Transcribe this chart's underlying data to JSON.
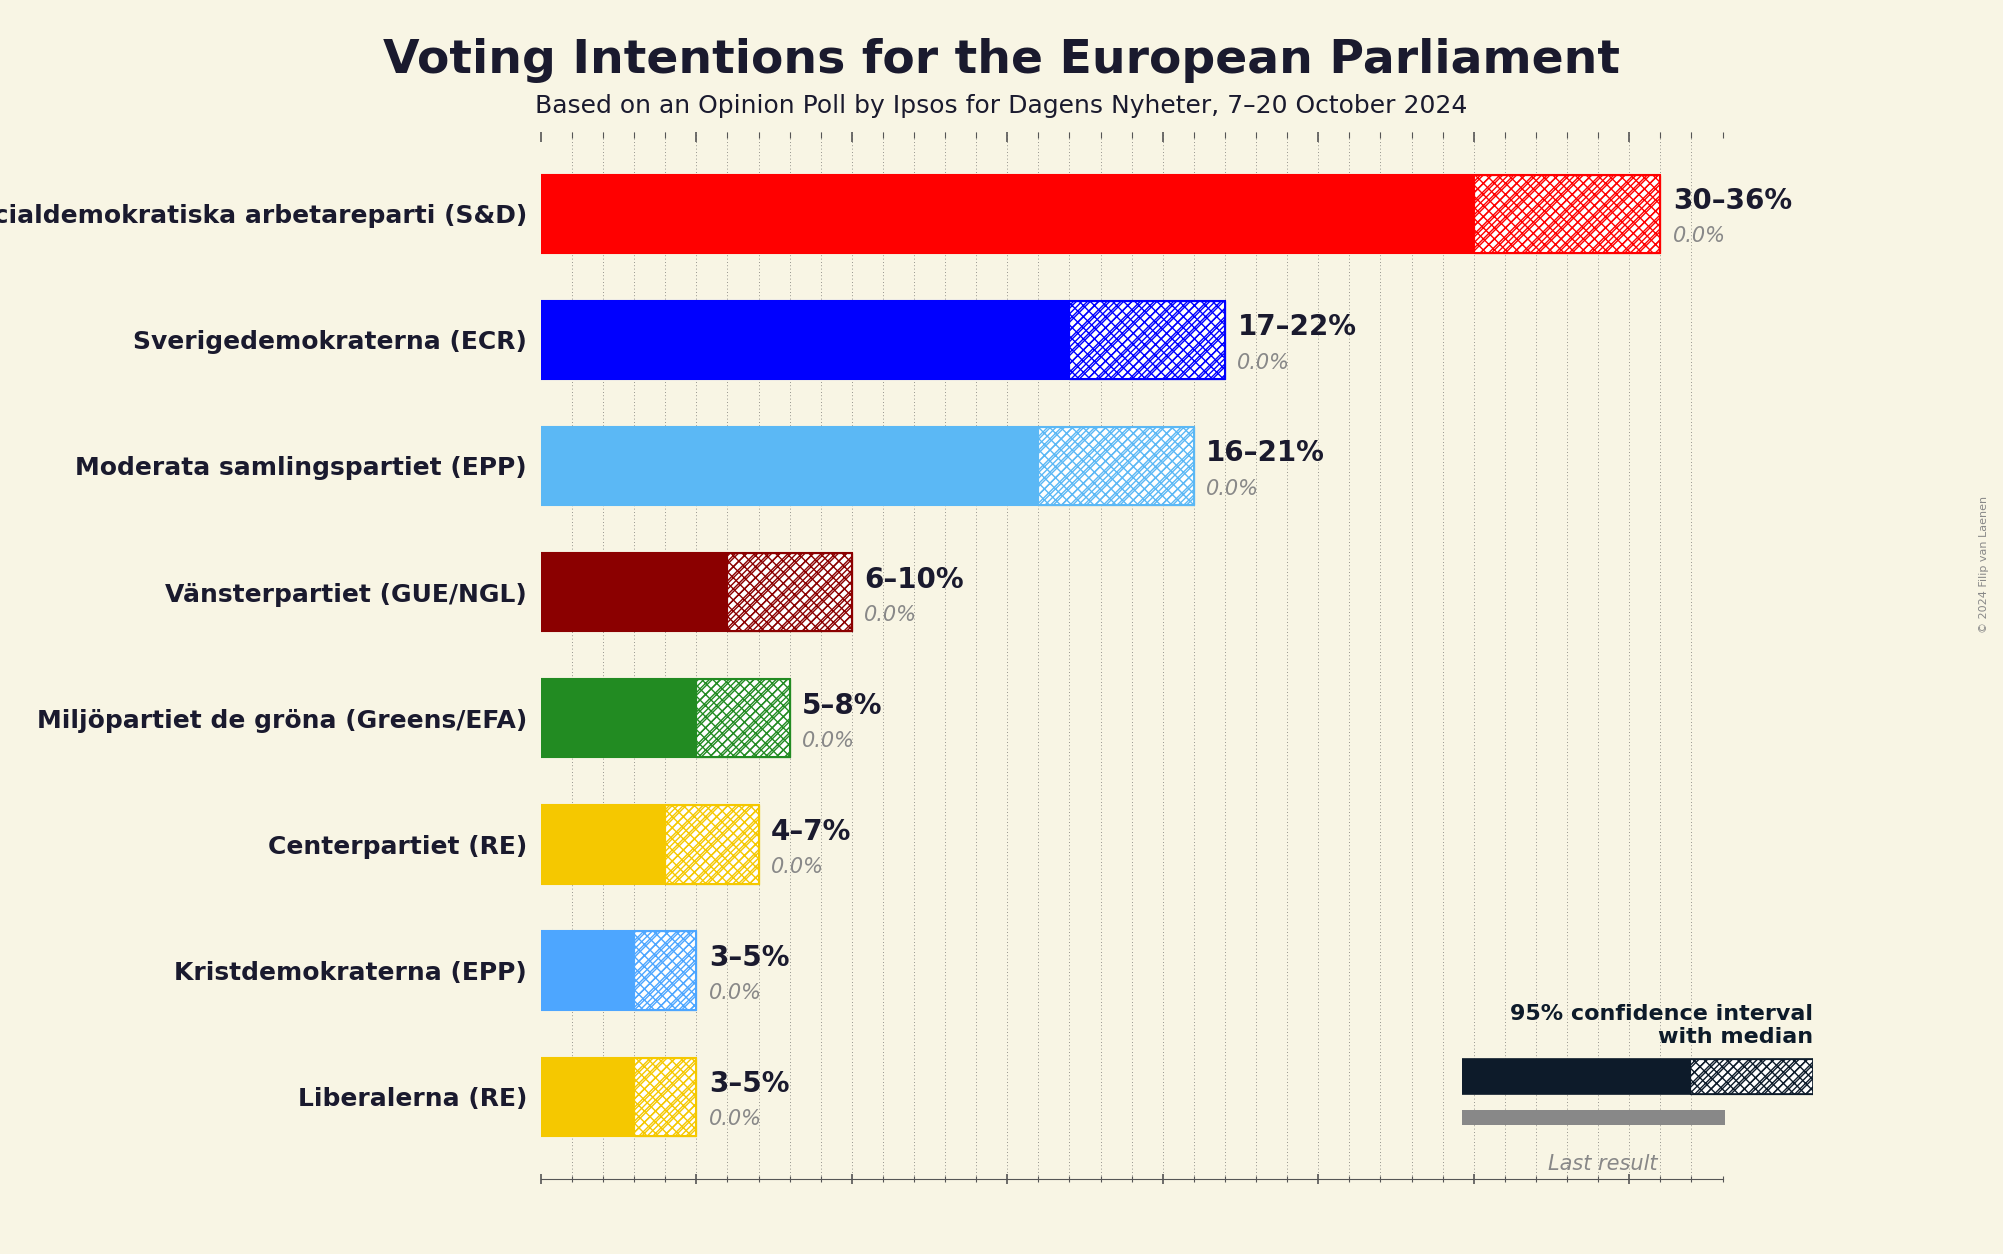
{
  "title": "Voting Intentions for the European Parliament",
  "subtitle": "Based on an Opinion Poll by Ipsos for Dagens Nyheter, 7–20 October 2024",
  "copyright": "© 2024 Filip van Laenen",
  "bg_color": "#f8f5e4",
  "parties": [
    {
      "name": "Sveriges socialdemokratiska arbetareparti (S&D)",
      "color": "#FF0000",
      "low": 30,
      "high": 36,
      "last": 0.0,
      "label": "30–36%",
      "last_label": "0.0%"
    },
    {
      "name": "Sverigedemokraterna (ECR)",
      "color": "#0000FF",
      "low": 17,
      "high": 22,
      "last": 0.0,
      "label": "17–22%",
      "last_label": "0.0%"
    },
    {
      "name": "Moderata samlingspartiet (EPP)",
      "color": "#5BB8F5",
      "low": 16,
      "high": 21,
      "last": 0.0,
      "label": "16–21%",
      "last_label": "0.0%"
    },
    {
      "name": "Vänsterpartiet (GUE/NGL)",
      "color": "#8B0000",
      "low": 6,
      "high": 10,
      "last": 0.0,
      "label": "6–10%",
      "last_label": "0.0%"
    },
    {
      "name": "Miljöpartiet de gröna (Greens/EFA)",
      "color": "#228B22",
      "low": 5,
      "high": 8,
      "last": 0.0,
      "label": "5–8%",
      "last_label": "0.0%"
    },
    {
      "name": "Centerpartiet (RE)",
      "color": "#F5C800",
      "low": 4,
      "high": 7,
      "last": 0.0,
      "label": "4–7%",
      "last_label": "0.0%"
    },
    {
      "name": "Kristdemokraterna (EPP)",
      "color": "#4DA6FF",
      "low": 3,
      "high": 5,
      "last": 0.0,
      "label": "3–5%",
      "last_label": "0.0%"
    },
    {
      "name": "Liberalerna (RE)",
      "color": "#F5C800",
      "low": 3,
      "high": 5,
      "last": 0.0,
      "label": "3–5%",
      "last_label": "0.0%"
    }
  ],
  "xlim_max": 38,
  "text_color": "#1a1a2e",
  "last_color": "#888888",
  "legend_dark_color": "#0d1b2a",
  "bar_height": 0.62,
  "last_bar_height": 0.18,
  "last_bar_gap": 0.06
}
